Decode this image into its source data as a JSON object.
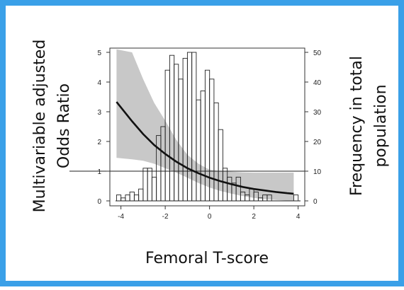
{
  "colors": {
    "border": "#3aa0e8",
    "background": "#ffffff",
    "band": "#c8c8c8",
    "curve": "#111111"
  },
  "chart_data": {
    "type": "bar",
    "xlabel": "Femoral T-score",
    "ylabel_left": [
      "Multivariable adjusted",
      "Odds Ratio"
    ],
    "ylabel_right": [
      "Frequency in total",
      "population"
    ],
    "xlim": [
      -4.5,
      4.3
    ],
    "ylim_left": [
      0,
      5.1
    ],
    "ylim_right": [
      0,
      51
    ],
    "x_ticks": [
      -4,
      -2,
      0,
      2,
      4
    ],
    "x_tick_labels": [
      "-4",
      "-2",
      "0",
      "2",
      "4"
    ],
    "y_left_ticks": [
      0,
      1,
      2,
      3,
      4,
      5
    ],
    "y_left_tick_labels": [
      "0",
      "1",
      "2",
      "3",
      "4",
      "5"
    ],
    "y_right_ticks": [
      0,
      10,
      20,
      30,
      40,
      50
    ],
    "y_right_tick_labels": [
      "0",
      "10",
      "20",
      "30",
      "40",
      "50"
    ],
    "reference_line_or": 1,
    "histogram": {
      "bin_width": 0.2,
      "bin_starts": [
        -4.2,
        -4.0,
        -3.8,
        -3.6,
        -3.4,
        -3.2,
        -3.0,
        -2.8,
        -2.6,
        -2.4,
        -2.2,
        -2.0,
        -1.8,
        -1.6,
        -1.4,
        -1.2,
        -1.0,
        -0.8,
        -0.6,
        -0.4,
        -0.2,
        0.0,
        0.2,
        0.4,
        0.6,
        0.8,
        1.0,
        1.2,
        1.4,
        1.6,
        1.8,
        2.0,
        2.2,
        2.4,
        2.6,
        2.8,
        3.0,
        3.2,
        3.4,
        3.6,
        3.8
      ],
      "counts": [
        2,
        1,
        2,
        3,
        2,
        4,
        11,
        11,
        8,
        22,
        25,
        44,
        49,
        46,
        41,
        48,
        50,
        50,
        34,
        37,
        44,
        41,
        33,
        24,
        11,
        8,
        6,
        8,
        3,
        2,
        4,
        3,
        1,
        2,
        2,
        0,
        0,
        0,
        0,
        0,
        2
      ]
    },
    "odds_ratio_curve": {
      "x": [
        -4.2,
        -3.5,
        -3.0,
        -2.5,
        -2.0,
        -1.5,
        -1.0,
        -0.5,
        0.0,
        0.5,
        1.0,
        1.5,
        2.0,
        2.5,
        3.0,
        3.5,
        3.8
      ],
      "or": [
        3.33,
        2.68,
        2.25,
        1.88,
        1.58,
        1.32,
        1.1,
        0.93,
        0.78,
        0.66,
        0.56,
        0.47,
        0.4,
        0.35,
        0.3,
        0.26,
        0.24
      ],
      "lower": [
        1.45,
        1.4,
        1.35,
        1.25,
        1.1,
        0.95,
        0.78,
        0.6,
        0.45,
        0.33,
        0.24,
        0.16,
        0.1,
        0.06,
        0.03,
        0.01,
        0.0
      ],
      "upper": [
        5.1,
        5.0,
        4.1,
        3.3,
        2.7,
        2.05,
        1.55,
        1.25,
        1.05,
        1.0,
        0.98,
        0.96,
        0.95,
        0.95,
        0.95,
        0.95,
        0.95
      ]
    }
  }
}
